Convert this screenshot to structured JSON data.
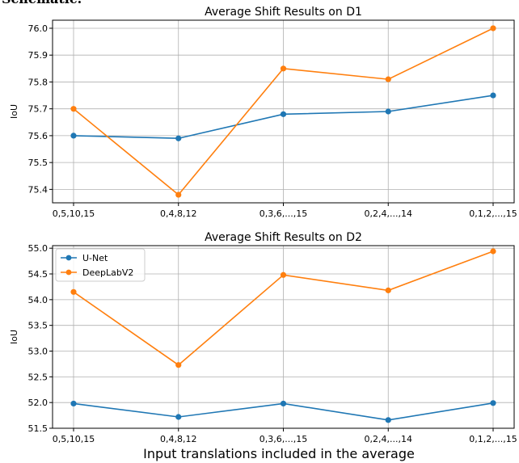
{
  "fragment_text": "Schematic.",
  "xlabel": "Input translations included in the average",
  "colors": {
    "unet": "#1f77b4",
    "deeplab": "#ff7f0e",
    "grid": "#b0b0b0",
    "axis": "#000000"
  },
  "chart_data": [
    {
      "type": "line",
      "title": "Average Shift Results on D1",
      "ylabel": "IoU",
      "xlabel": "",
      "categories": [
        "0,5,10,15",
        "0,4,8,12",
        "0,3,6,...,15",
        "0,2,4,...,14",
        "0,1,2,...,15"
      ],
      "ylim": [
        75.35,
        76.03
      ],
      "yticks": [
        75.4,
        75.5,
        75.6,
        75.7,
        75.8,
        75.9,
        76.0
      ],
      "ytick_labels": [
        "75.4",
        "75.5",
        "75.6",
        "75.7",
        "75.8",
        "75.9",
        "76.0"
      ],
      "grid": true,
      "legend": null,
      "series": [
        {
          "name": "U-Net",
          "color": "#1f77b4",
          "values": [
            75.6,
            75.59,
            75.68,
            75.69,
            75.75
          ]
        },
        {
          "name": "DeepLabV2",
          "color": "#ff7f0e",
          "values": [
            75.7,
            75.38,
            75.85,
            75.81,
            76.0
          ]
        }
      ]
    },
    {
      "type": "line",
      "title": "Average Shift Results on D2",
      "ylabel": "IoU",
      "xlabel": "Input translations included in the average",
      "categories": [
        "0,5,10,15",
        "0,4,8,12",
        "0,3,6,...,15",
        "0,2,4,...,14",
        "0,1,2,...,15"
      ],
      "ylim": [
        51.5,
        55.05
      ],
      "yticks": [
        51.5,
        52.0,
        52.5,
        53.0,
        53.5,
        54.0,
        54.5,
        55.0
      ],
      "ytick_labels": [
        "51.5",
        "52.0",
        "52.5",
        "53.0",
        "53.5",
        "54.0",
        "54.5",
        "55.0"
      ],
      "grid": true,
      "legend": "top-left",
      "series": [
        {
          "name": "U-Net",
          "color": "#1f77b4",
          "values": [
            51.98,
            51.72,
            51.98,
            51.66,
            51.99
          ]
        },
        {
          "name": "DeepLabV2",
          "color": "#ff7f0e",
          "values": [
            54.15,
            52.73,
            54.48,
            54.18,
            54.94
          ]
        }
      ]
    }
  ]
}
